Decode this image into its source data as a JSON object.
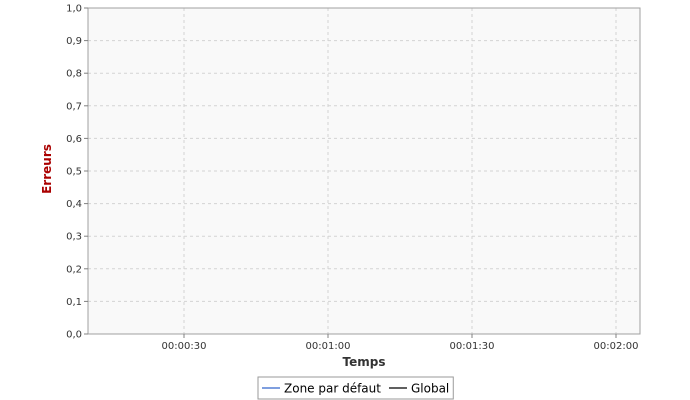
{
  "chart_data": {
    "type": "line",
    "xlabel": "Temps",
    "ylabel": "Erreurs",
    "ylabel_color": "#aa0000",
    "xlabel_color": "#333333",
    "x_ticks": [
      {
        "seconds": 30,
        "label": "00:00:30"
      },
      {
        "seconds": 60,
        "label": "00:01:00"
      },
      {
        "seconds": 90,
        "label": "00:01:30"
      },
      {
        "seconds": 120,
        "label": "00:02:00"
      }
    ],
    "xlim": [
      "00:00:10",
      "00:02:05"
    ],
    "xlim_seconds": [
      10,
      125
    ],
    "ylim": [
      0,
      1
    ],
    "y_ticks": [
      {
        "value": 0.0,
        "label": "0,0"
      },
      {
        "value": 0.1,
        "label": "0,1"
      },
      {
        "value": 0.2,
        "label": "0,2"
      },
      {
        "value": 0.3,
        "label": "0,3"
      },
      {
        "value": 0.4,
        "label": "0,4"
      },
      {
        "value": 0.5,
        "label": "0,5"
      },
      {
        "value": 0.6,
        "label": "0,6"
      },
      {
        "value": 0.7,
        "label": "0,7"
      },
      {
        "value": 0.8,
        "label": "0,8"
      },
      {
        "value": 0.9,
        "label": "0,9"
      },
      {
        "value": 1.0,
        "label": "1,0"
      }
    ],
    "grid": true,
    "legend_position": "bottom-center",
    "plot_background": "#f9f9f9",
    "series": [
      {
        "name": "Zone par défaut",
        "color": "#3366cc",
        "points": []
      },
      {
        "name": "Global",
        "color": "#000000",
        "points": []
      }
    ]
  }
}
